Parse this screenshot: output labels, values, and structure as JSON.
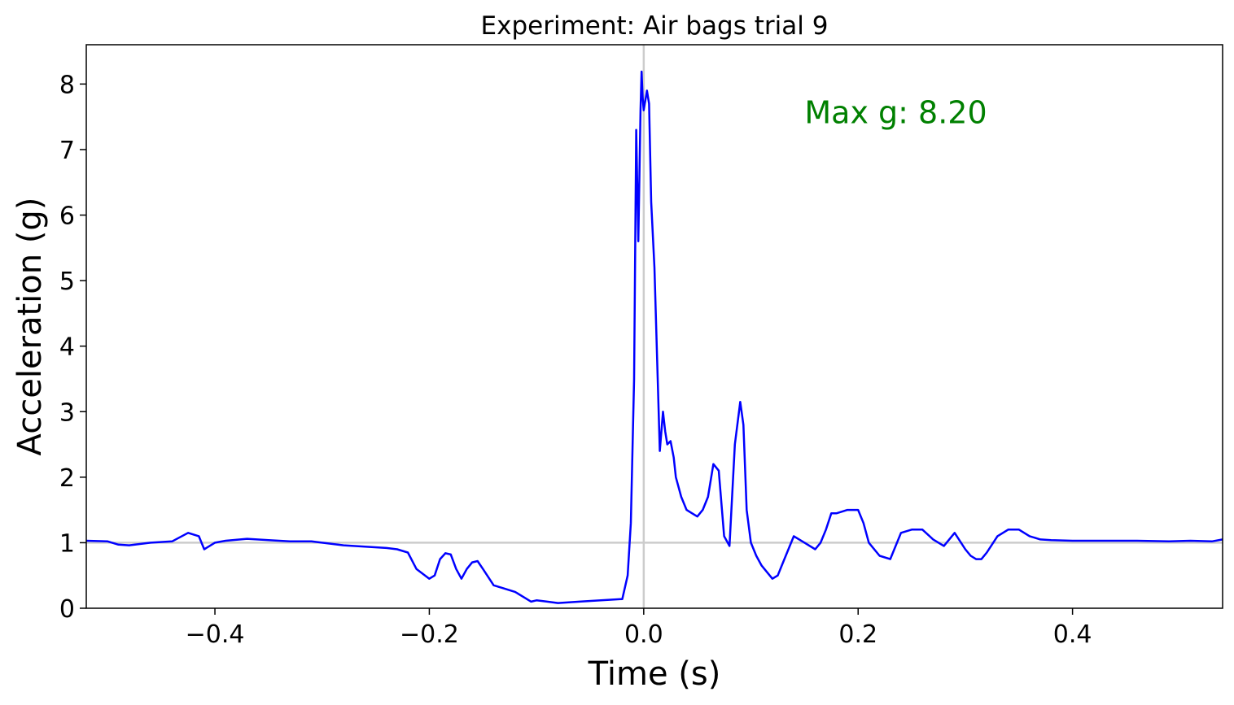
{
  "chart_data": {
    "type": "line",
    "title": "Experiment: Air bags trial 9",
    "xlabel": "Time (s)",
    "ylabel": "Acceleration (g)",
    "xlim": [
      -0.52,
      0.54
    ],
    "ylim": [
      0,
      8.6
    ],
    "xticks": [
      -0.4,
      -0.2,
      0.0,
      0.2,
      0.4
    ],
    "xtick_labels": [
      "−0.4",
      "−0.2",
      "0.0",
      "0.2",
      "0.4"
    ],
    "yticks": [
      0,
      1,
      2,
      3,
      4,
      5,
      6,
      7,
      8
    ],
    "ytick_labels": [
      "0",
      "1",
      "2",
      "3",
      "4",
      "5",
      "6",
      "7",
      "8"
    ],
    "grid": false,
    "reference_lines": {
      "vertical_x": 0.0,
      "horizontal_y": 1.0,
      "color": "#cccccc"
    },
    "annotation": {
      "text": "Max g: 8.20",
      "x": 0.15,
      "y": 7.4,
      "color": "#008000"
    },
    "series": [
      {
        "color": "#0000ff",
        "x": [
          -0.52,
          -0.5,
          -0.49,
          -0.48,
          -0.46,
          -0.44,
          -0.425,
          -0.415,
          -0.41,
          -0.4,
          -0.39,
          -0.37,
          -0.35,
          -0.33,
          -0.31,
          -0.3,
          -0.28,
          -0.26,
          -0.24,
          -0.23,
          -0.22,
          -0.212,
          -0.2,
          -0.195,
          -0.19,
          -0.185,
          -0.18,
          -0.175,
          -0.17,
          -0.165,
          -0.16,
          -0.155,
          -0.15,
          -0.14,
          -0.13,
          -0.12,
          -0.11,
          -0.105,
          -0.1,
          -0.09,
          -0.08,
          -0.06,
          -0.04,
          -0.02,
          -0.015,
          -0.012,
          -0.009,
          -0.007,
          -0.005,
          -0.003,
          -0.002,
          -0.001,
          0.0,
          0.001,
          0.002,
          0.003,
          0.005,
          0.007,
          0.01,
          0.015,
          0.018,
          0.02,
          0.022,
          0.025,
          0.028,
          0.03,
          0.035,
          0.04,
          0.045,
          0.05,
          0.055,
          0.06,
          0.065,
          0.07,
          0.075,
          0.08,
          0.085,
          0.09,
          0.093,
          0.096,
          0.1,
          0.105,
          0.11,
          0.12,
          0.125,
          0.13,
          0.14,
          0.15,
          0.16,
          0.165,
          0.17,
          0.175,
          0.18,
          0.19,
          0.2,
          0.205,
          0.21,
          0.22,
          0.23,
          0.24,
          0.25,
          0.26,
          0.27,
          0.28,
          0.29,
          0.3,
          0.305,
          0.31,
          0.315,
          0.32,
          0.33,
          0.34,
          0.35,
          0.36,
          0.37,
          0.38,
          0.4,
          0.43,
          0.46,
          0.49,
          0.51,
          0.53,
          0.54
        ],
        "y": [
          1.03,
          1.02,
          0.97,
          0.96,
          1.0,
          1.02,
          1.15,
          1.1,
          0.9,
          1.0,
          1.03,
          1.06,
          1.04,
          1.02,
          1.02,
          1.0,
          0.96,
          0.94,
          0.92,
          0.9,
          0.85,
          0.6,
          0.45,
          0.5,
          0.75,
          0.84,
          0.82,
          0.6,
          0.45,
          0.6,
          0.7,
          0.72,
          0.6,
          0.35,
          0.3,
          0.25,
          0.15,
          0.1,
          0.12,
          0.1,
          0.08,
          0.1,
          0.12,
          0.14,
          0.5,
          1.3,
          3.5,
          7.3,
          5.6,
          7.6,
          8.19,
          7.8,
          7.6,
          7.7,
          7.8,
          7.9,
          7.7,
          6.2,
          5.2,
          2.4,
          3.0,
          2.7,
          2.5,
          2.55,
          2.3,
          2.0,
          1.7,
          1.5,
          1.45,
          1.4,
          1.5,
          1.7,
          2.2,
          2.1,
          1.1,
          0.95,
          2.5,
          3.15,
          2.8,
          1.5,
          1.0,
          0.8,
          0.65,
          0.45,
          0.5,
          0.7,
          1.1,
          1.0,
          0.9,
          1.0,
          1.2,
          1.45,
          1.45,
          1.5,
          1.5,
          1.3,
          1.0,
          0.8,
          0.75,
          1.15,
          1.2,
          1.2,
          1.05,
          0.95,
          1.15,
          0.9,
          0.8,
          0.75,
          0.75,
          0.85,
          1.1,
          1.2,
          1.2,
          1.1,
          1.05,
          1.04,
          1.03,
          1.03,
          1.03,
          1.02,
          1.03,
          1.02,
          1.05
        ]
      }
    ]
  }
}
